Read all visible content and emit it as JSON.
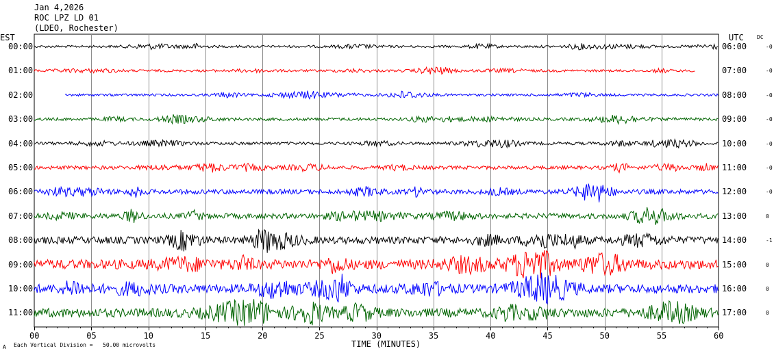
{
  "header": {
    "date": "Jan 4,2026",
    "station": "ROC LPZ LD 01",
    "network": "(LDEO, Rochester)"
  },
  "left_zone": "EST",
  "right_zone": "UTC",
  "dc_label": "DC",
  "footer": {
    "division_note": "Each Vertical Division =   50.00 microvolts",
    "corner_mark": "A"
  },
  "colors": {
    "black": "#000000",
    "red": "#ff0000",
    "blue": "#0000ff",
    "green": "#006400"
  },
  "chart_data": {
    "type": "line",
    "xlabel": "TIME (MINUTES)",
    "xlim": [
      0,
      60
    ],
    "xticks": [
      "00",
      "05",
      "10",
      "15",
      "20",
      "25",
      "30",
      "35",
      "40",
      "45",
      "50",
      "55",
      "60"
    ],
    "traces": [
      {
        "est": "00:00",
        "utc": "06:00",
        "dc": "-0",
        "color": "#000000",
        "amp": 0.2,
        "start": 0,
        "end": 60
      },
      {
        "est": "01:00",
        "utc": "07:00",
        "dc": "-0",
        "color": "#ff0000",
        "amp": 0.2,
        "start": 0,
        "end": 58
      },
      {
        "est": "02:00",
        "utc": "08:00",
        "dc": "-0",
        "color": "#0000ff",
        "amp": 0.2,
        "start": 2.7,
        "end": 60
      },
      {
        "est": "03:00",
        "utc": "09:00",
        "dc": "-0",
        "color": "#006400",
        "amp": 0.25,
        "start": 0,
        "end": 60
      },
      {
        "est": "04:00",
        "utc": "10:00",
        "dc": "-0",
        "color": "#000000",
        "amp": 0.25,
        "start": 0,
        "end": 60
      },
      {
        "est": "05:00",
        "utc": "11:00",
        "dc": "-0",
        "color": "#ff0000",
        "amp": 0.3,
        "start": 0,
        "end": 60
      },
      {
        "est": "06:00",
        "utc": "12:00",
        "dc": "-0",
        "color": "#0000ff",
        "amp": 0.4,
        "start": 0,
        "end": 60
      },
      {
        "est": "07:00",
        "utc": "13:00",
        "dc": "0",
        "color": "#006400",
        "amp": 0.45,
        "start": 0,
        "end": 60
      },
      {
        "est": "08:00",
        "utc": "14:00",
        "dc": "-1",
        "color": "#000000",
        "amp": 0.6,
        "start": 0,
        "end": 60
      },
      {
        "est": "09:00",
        "utc": "15:00",
        "dc": "0",
        "color": "#ff0000",
        "amp": 0.8,
        "start": 0,
        "end": 60
      },
      {
        "est": "10:00",
        "utc": "16:00",
        "dc": "0",
        "color": "#0000ff",
        "amp": 0.75,
        "start": 0,
        "end": 60
      },
      {
        "est": "11:00",
        "utc": "17:00",
        "dc": "0",
        "color": "#006400",
        "amp": 0.75,
        "start": 0,
        "end": 60
      }
    ]
  }
}
